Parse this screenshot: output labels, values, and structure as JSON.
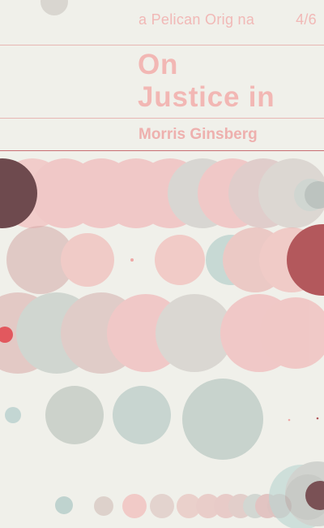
{
  "cover": {
    "series": "a Pelican Orig na",
    "price": "4/6",
    "title_lines": [
      "On",
      "Justice in"
    ],
    "author": "Morris Ginsberg"
  },
  "palette": {
    "background": "#f0f0ea",
    "text": "#f2b7b4",
    "rule": "#e7b7b4",
    "rule_dark": "#c96f73",
    "pink": "#f2b8b6",
    "rose_grey": "#dcc2c0",
    "sage": "#c7d3cf",
    "teal": "#bfd8d5",
    "maroon": "#6e4a4e",
    "crimson": "#b3585c",
    "red_dot": "#e2585e"
  }
}
